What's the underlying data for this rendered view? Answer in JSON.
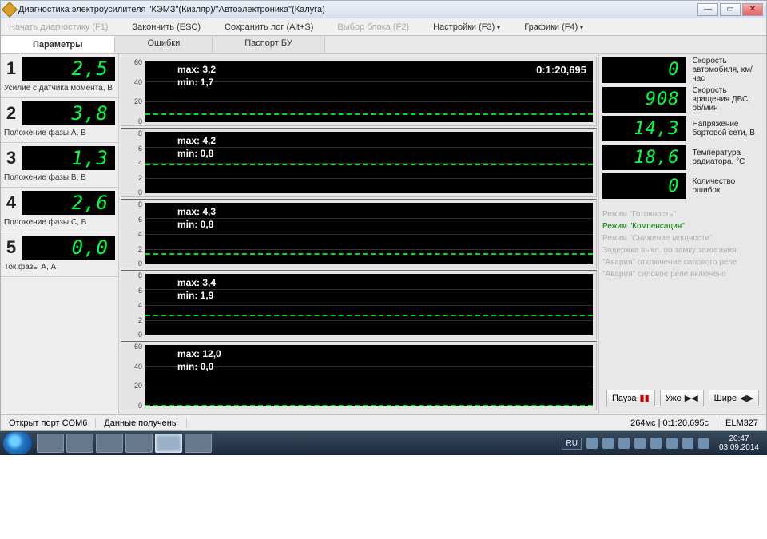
{
  "window": {
    "title": "Диагностика электроусилителя \"КЭМЗ\"(Кизляр)/\"Автоэлектроника\"(Калуга)"
  },
  "toolbar": {
    "start": "Начать диагностику (F1)",
    "finish": "Закончить (ESC)",
    "save": "Сохранить лог (Alt+S)",
    "block": "Выбор блока (F2)",
    "settings": "Настройки (F3)",
    "graphs": "Графики (F4)"
  },
  "tabs": {
    "params": "Параметры",
    "errors": "Ошибки",
    "passport": "Паспорт БУ"
  },
  "params": [
    {
      "num": "1",
      "value": "2,5",
      "label": "Усилие с датчика момента, В",
      "chart": {
        "max": "max: 3,2",
        "min": "min: 1,7",
        "timer": "0:1:20,695",
        "y_ticks": [
          "60",
          "40",
          "20",
          "0"
        ],
        "trace_pct": 86,
        "trace_color": "#00e020"
      }
    },
    {
      "num": "2",
      "value": "3,8",
      "label": "Положение фазы A, В",
      "chart": {
        "max": "max: 4,2",
        "min": "min: 0,8",
        "y_ticks": [
          "8",
          "6",
          "4",
          "2",
          "0"
        ],
        "trace_pct": 52,
        "trace_color": "#00e020"
      }
    },
    {
      "num": "3",
      "value": "1,3",
      "label": "Положение фазы B, В",
      "chart": {
        "max": "max: 4,3",
        "min": "min: 0,8",
        "y_ticks": [
          "8",
          "6",
          "4",
          "2",
          "0"
        ],
        "trace_pct": 82,
        "trace_color": "#00e020"
      }
    },
    {
      "num": "4",
      "value": "2,6",
      "label": "Положение фазы C, В",
      "chart": {
        "max": "max: 3,4",
        "min": "min: 1,9",
        "y_ticks": [
          "8",
          "6",
          "4",
          "2",
          "0"
        ],
        "trace_pct": 66,
        "trace_color": "#00e020"
      }
    },
    {
      "num": "5",
      "value": "0,0",
      "label": "Ток фазы A, А",
      "chart": {
        "max": "max: 12,0",
        "min": "min: 0,0",
        "y_ticks": [
          "60",
          "40",
          "20",
          "0"
        ],
        "trace_pct": 98,
        "trace_color": "#00e020"
      }
    }
  ],
  "gauges": [
    {
      "value": "0",
      "label": "Скорость автомобиля, км/час"
    },
    {
      "value": "908",
      "label": "Скорость вращения ДВС, об/мин"
    },
    {
      "value": "14,3",
      "label": "Напряжение бортовой сети, В"
    },
    {
      "value": "18,6",
      "label": "Температура радиатора, °C"
    },
    {
      "value": "0",
      "label": "Количество ошибок"
    }
  ],
  "modes": [
    {
      "text": "Режим \"Готовность\"",
      "active": false
    },
    {
      "text": "Режим \"Компенсация\"",
      "active": true
    },
    {
      "text": "Режим \"Снижение мощности\"",
      "active": false
    },
    {
      "text": "Задержка выкл. по замку зажигания",
      "active": false
    },
    {
      "text": "\"Авария\" отключение силового реле",
      "active": false
    },
    {
      "text": "\"Авария\" силовое реле включено",
      "active": false
    }
  ],
  "rbuttons": {
    "pause": "Пауза",
    "narrow": "Уже",
    "wider": "Шире"
  },
  "status": {
    "port": "Открыт порт COM6",
    "data": "Данные получены",
    "timing": "264мс | 0:1:20,695с",
    "adapter": "ELM327"
  },
  "taskbar": {
    "lang": "RU",
    "time": "20:47",
    "date": "03.09.2014"
  },
  "colors": {
    "lcd_green": "#00ff40",
    "plot_bg": "#000000",
    "trace": "#00e020"
  }
}
